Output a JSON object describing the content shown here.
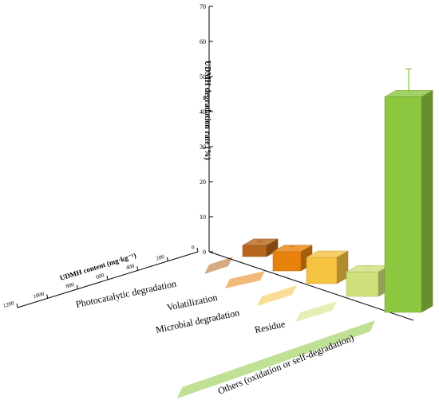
{
  "chart_data": {
    "type": "bar",
    "subtype": "3d-bar",
    "title": "",
    "ylabel": "UDMH degradation rate (%)",
    "xlabel": "UDMH content (mg·kg⁻¹)",
    "ylim": [
      0,
      70
    ],
    "yticks": [
      0,
      10,
      20,
      30,
      40,
      50,
      60,
      70
    ],
    "xticks": [
      0,
      200,
      400,
      600,
      800,
      1000,
      1200
    ],
    "categories": [
      "Photocatalytic degradation",
      "Volatilization",
      "Microbial degradation",
      "Residue",
      "Others (oxidation or self-degradation)"
    ],
    "values": [
      3.2,
      5.5,
      7.5,
      7.0,
      61.5
    ],
    "errors": [
      0.3,
      0.6,
      0.8,
      0.6,
      7.0
    ],
    "colors": [
      "#b5651d",
      "#e8820c",
      "#f5c242",
      "#cfe07a",
      "#8dc63f"
    ],
    "grid": false
  }
}
